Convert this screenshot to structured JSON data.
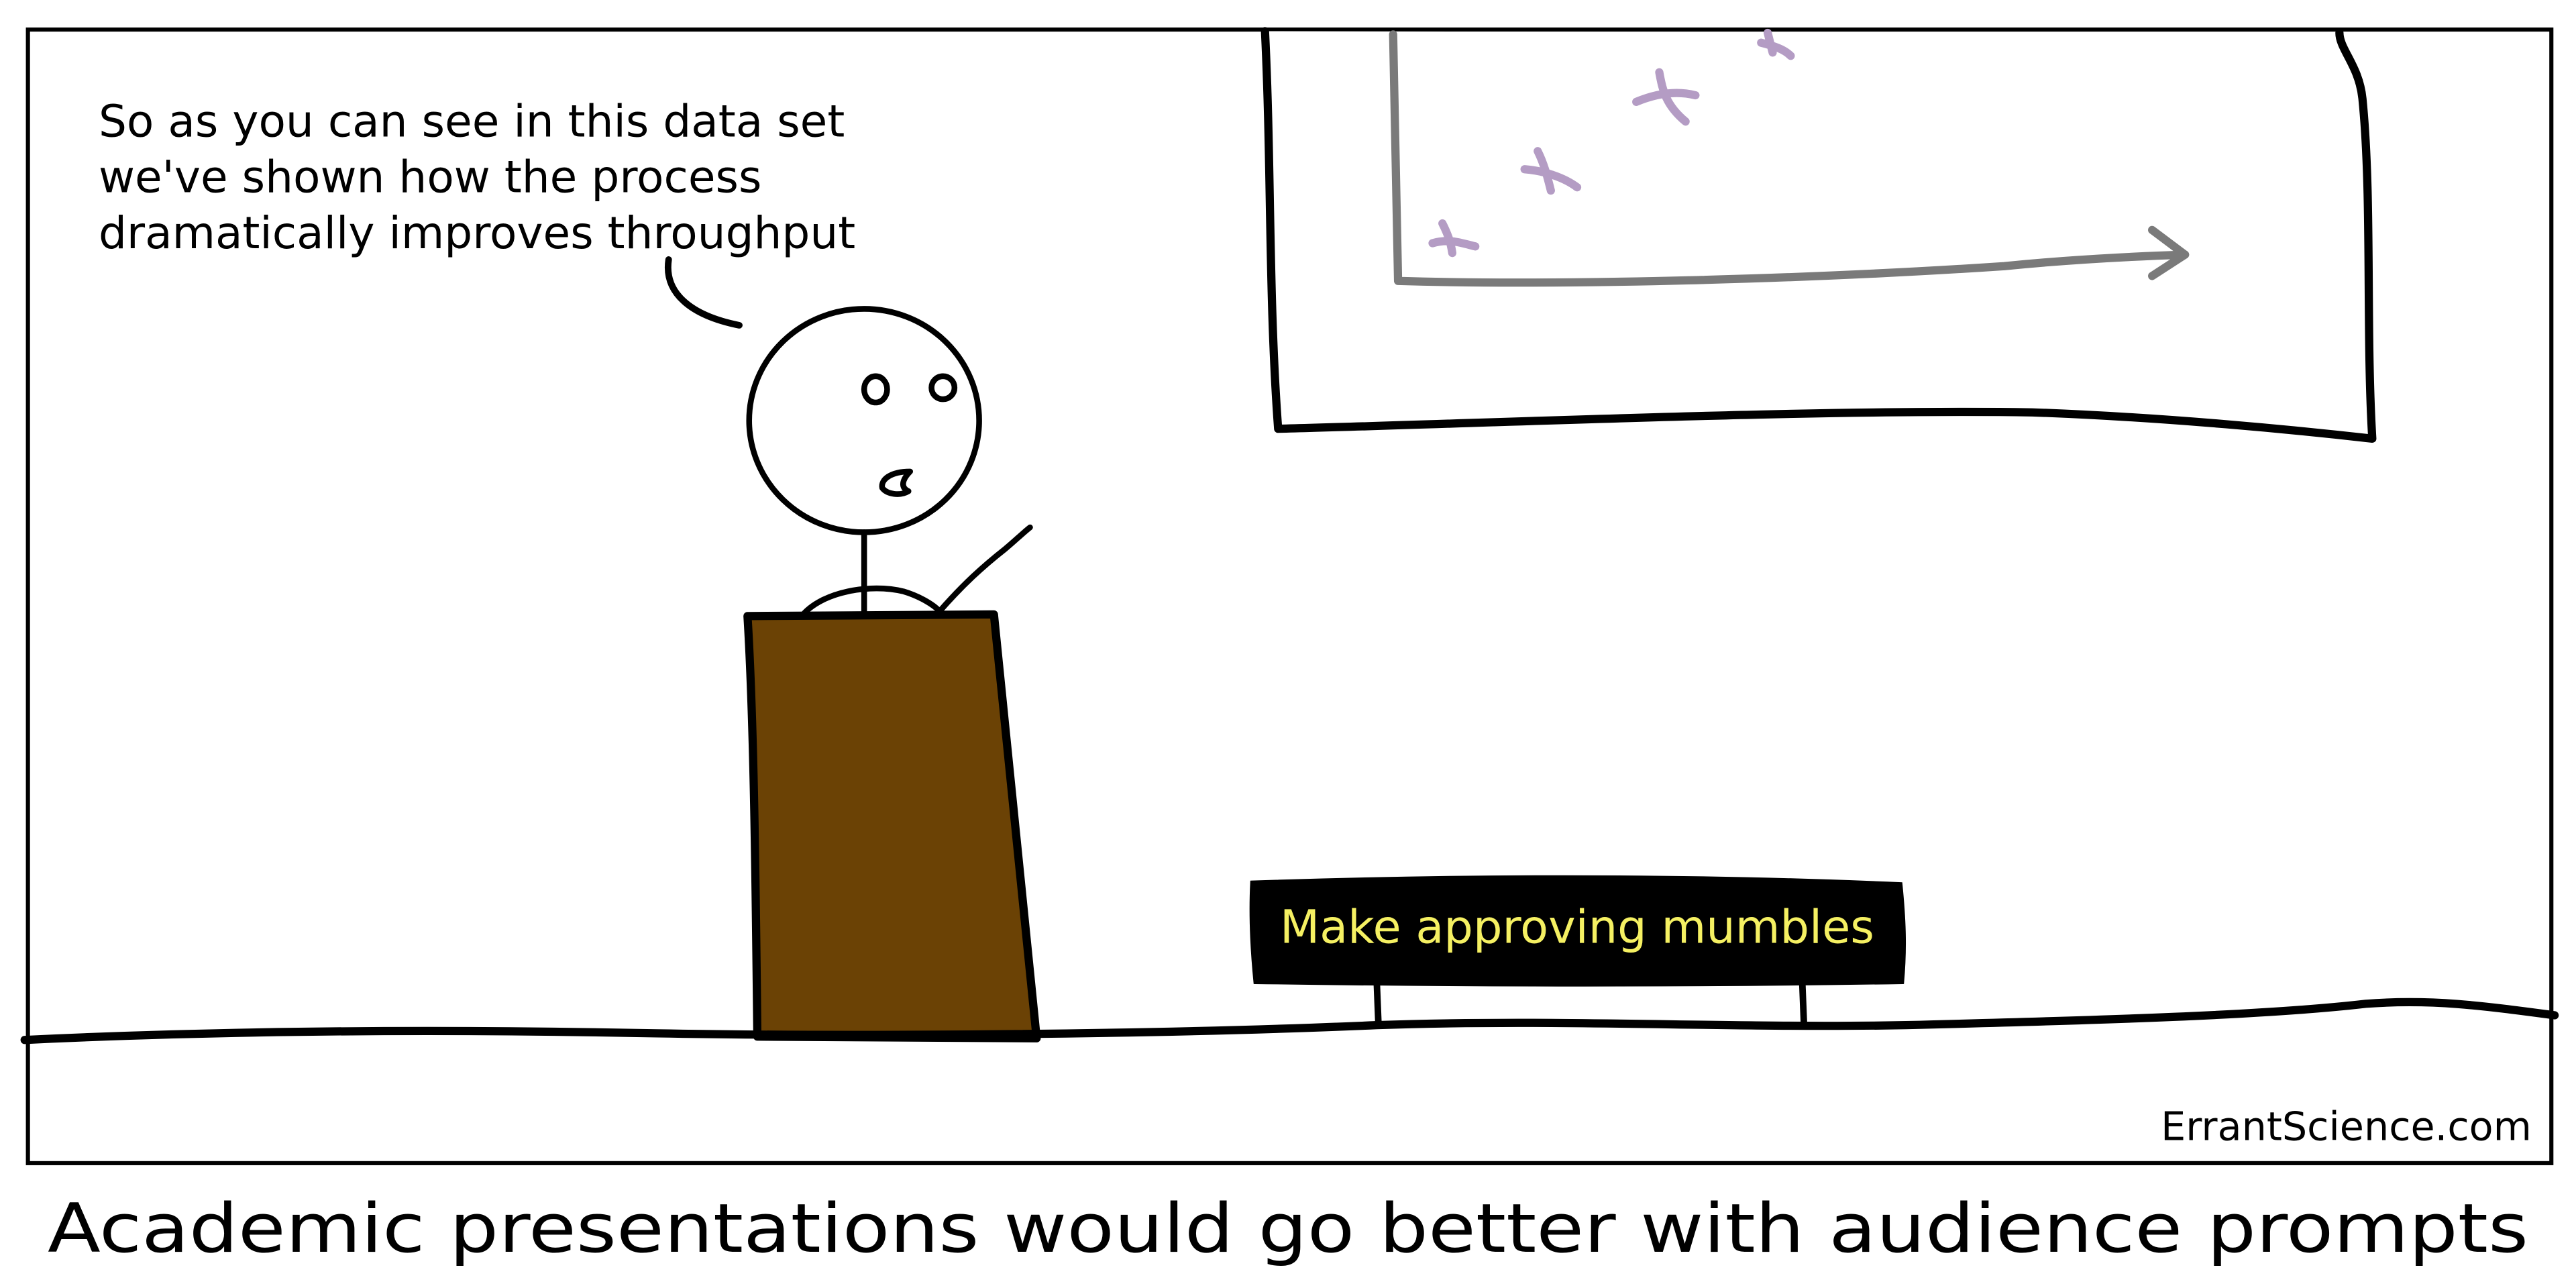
{
  "comic": {
    "speech_lines": [
      "So as you can see in this data set",
      "we've shown how the process",
      "dramatically improves throughput"
    ],
    "audience_prompt": "Make approving mumbles",
    "credit": "ErrantScience.com",
    "caption": "Academic presentations would go better with audience prompts"
  },
  "colors": {
    "ink": "#000000",
    "podium": "#6b4205",
    "prompt_bg": "#000000",
    "prompt_text": "#f5f062",
    "chart_axis": "#7a7a7a",
    "chart_points": "#b49cc4"
  }
}
